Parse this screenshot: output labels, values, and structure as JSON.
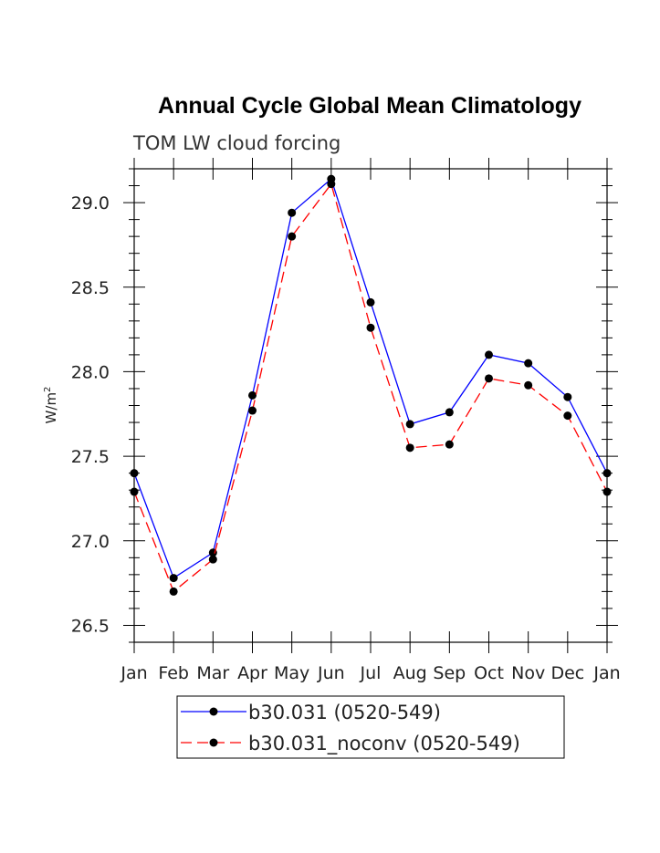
{
  "chart_data": {
    "type": "line",
    "title": "Annual Cycle Global Mean Climatology",
    "subtitle": "TOM LW cloud forcing",
    "xlabel": "",
    "ylabel": "W/m",
    "ylabel_superscript": "2",
    "categories": [
      "Jan",
      "Feb",
      "Mar",
      "Apr",
      "May",
      "Jun",
      "Jul",
      "Aug",
      "Sep",
      "Oct",
      "Nov",
      "Dec",
      "Jan"
    ],
    "ylim": [
      26.4,
      29.2
    ],
    "yticks": [
      26.5,
      27.0,
      27.5,
      28.0,
      28.5,
      29.0
    ],
    "ytick_labels": [
      "26.5",
      "27.0",
      "27.5",
      "28.0",
      "28.5",
      "29.0"
    ],
    "grid": false,
    "legend_position": "bottom-center",
    "series": [
      {
        "name": "b30.031 (0520-549)",
        "color": "#0000ff",
        "style": "solid",
        "values": [
          27.4,
          26.78,
          26.93,
          27.86,
          28.94,
          29.14,
          28.41,
          27.69,
          27.76,
          28.1,
          28.05,
          27.85,
          27.4
        ]
      },
      {
        "name": "b30.031_noconv (0520-549)",
        "color": "#ff0000",
        "style": "dashed",
        "values": [
          27.29,
          26.7,
          26.89,
          27.77,
          28.8,
          29.11,
          28.26,
          27.55,
          27.57,
          27.96,
          27.92,
          27.74,
          27.29
        ]
      }
    ]
  }
}
